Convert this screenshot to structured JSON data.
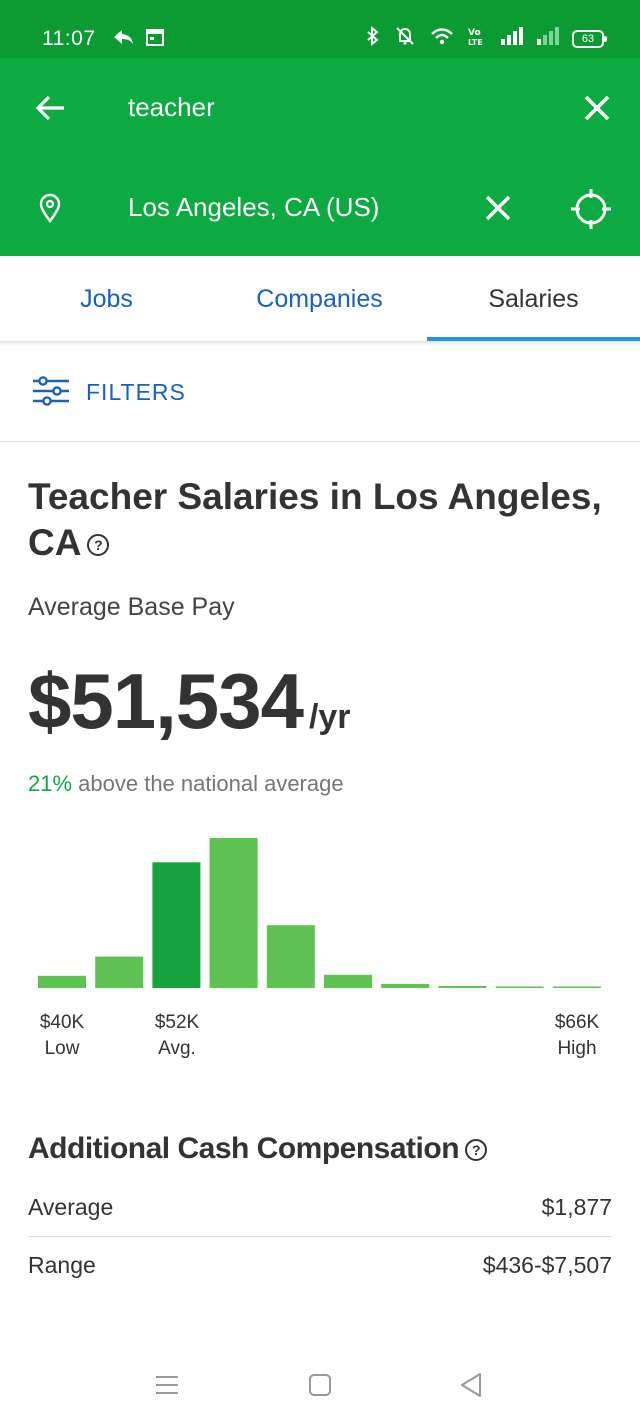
{
  "status_bar": {
    "time": "11:07",
    "battery": "63",
    "icons": [
      "forward-icon",
      "calendar-icon",
      "bluetooth-icon",
      "mute-icon",
      "wifi-icon",
      "volte-icon",
      "signal-icon",
      "signal-icon"
    ]
  },
  "search": {
    "keyword": "teacher",
    "location": "Los Angeles, CA (US)"
  },
  "tabs": [
    {
      "label": "Jobs",
      "active": false
    },
    {
      "label": "Companies",
      "active": false
    },
    {
      "label": "Salaries",
      "active": true
    }
  ],
  "filters": {
    "label": "FILTERS"
  },
  "salary": {
    "title": "Teacher Salaries in Los Angeles, CA",
    "avg_label": "Average Base Pay",
    "amount": "$51,534",
    "unit": "/yr",
    "pct": "21%",
    "pct_text": " above the national average"
  },
  "chart_data": {
    "type": "bar",
    "values": [
      12,
      31,
      124,
      148,
      62,
      13,
      4,
      2,
      1,
      1
    ],
    "highlight": [
      2
    ],
    "colors": {
      "bar": "#5ec353",
      "highlight": "#16a33e"
    },
    "ticks": [
      {
        "value": "$40K",
        "label": "Low"
      },
      {
        "value": "$52K",
        "label": "Avg."
      },
      {
        "value": "$66K",
        "label": "High"
      }
    ]
  },
  "additional": {
    "title": "Additional Cash Compensation",
    "rows": [
      {
        "label": "Average",
        "value": "$1,877"
      },
      {
        "label": "Range",
        "value": "$436-$7,507"
      }
    ]
  },
  "colors": {
    "brand_green": "#0caa41",
    "status_green": "#0b9b32",
    "link_blue": "#1861bf",
    "tab_indicator": "#1c9ad6"
  }
}
